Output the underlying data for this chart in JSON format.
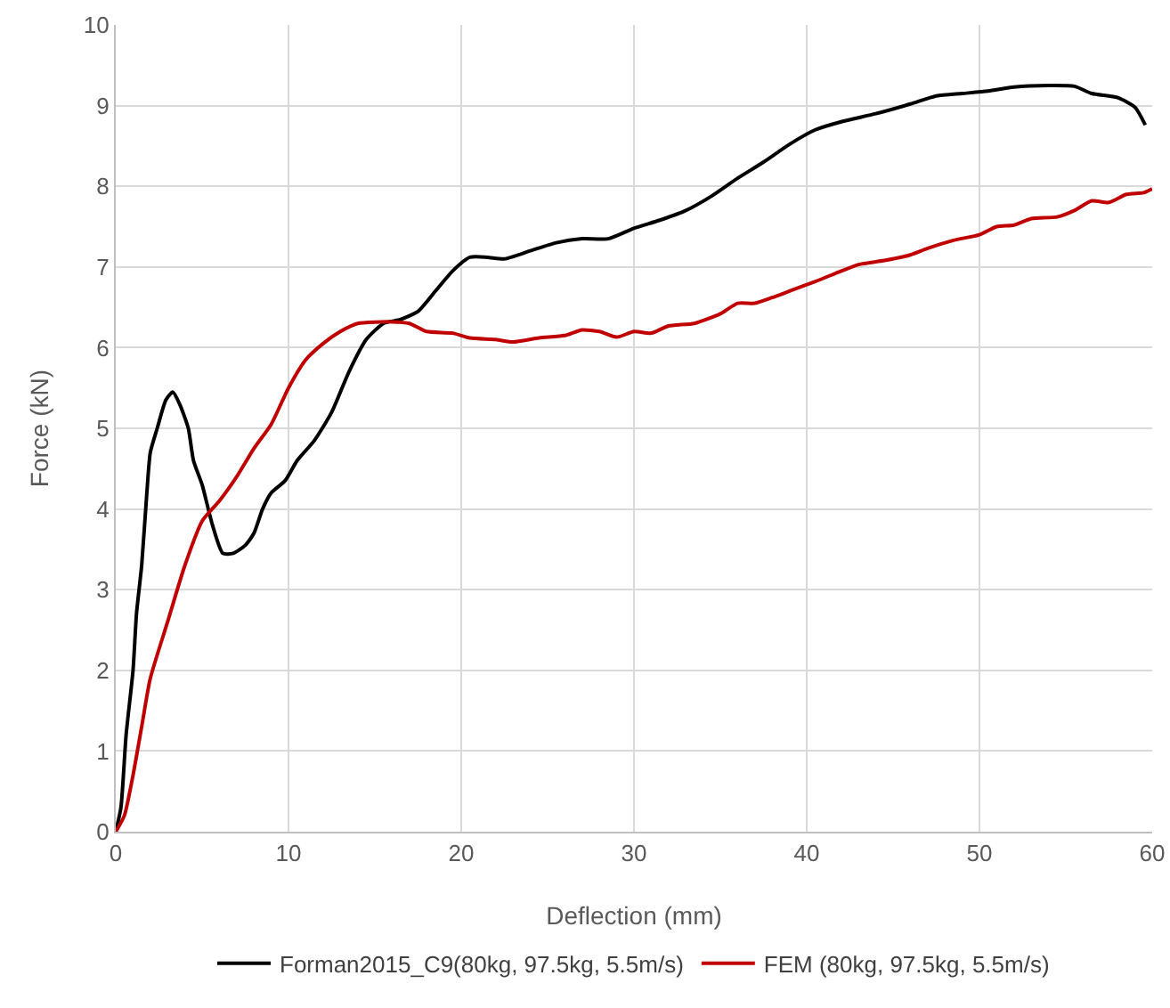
{
  "chart_data": {
    "type": "line",
    "xlabel": "Deflection (mm)",
    "ylabel": "Force (kN)",
    "xlim": [
      0,
      60
    ],
    "xticks": [
      0,
      10,
      20,
      30,
      40,
      50,
      60
    ],
    "ylim": [
      0,
      10
    ],
    "yticks": [
      0,
      1,
      2,
      3,
      4,
      5,
      6,
      7,
      8,
      9,
      10
    ],
    "grid": true,
    "legend": "bottom",
    "marker": "none",
    "line_style": "solid",
    "series": [
      {
        "name": "Forman2015_C9(80kg, 97.5kg, 5.5m/s)",
        "color": "#000000",
        "x": [
          0,
          0.3,
          0.6,
          1.0,
          1.2,
          1.5,
          1.8,
          2.0,
          2.4,
          2.9,
          3.3,
          3.7,
          4.2,
          4.5,
          5.0,
          5.6,
          6.2,
          6.8,
          7.5,
          8.0,
          8.5,
          9.0,
          9.8,
          10.5,
          11.5,
          12.5,
          13.5,
          14.5,
          15.5,
          16.5,
          17.5,
          18.5,
          19.5,
          20.5,
          21.5,
          22.5,
          24,
          25.5,
          27,
          28.5,
          30,
          31.5,
          33,
          34.5,
          36,
          37.5,
          39,
          40.5,
          42,
          44,
          46,
          47.5,
          49,
          50.5,
          52,
          54,
          55.5,
          56.5,
          58,
          59,
          59.6
        ],
        "values": [
          0,
          0.3,
          1.2,
          2.0,
          2.7,
          3.3,
          4.2,
          4.7,
          5.0,
          5.35,
          5.45,
          5.3,
          5.0,
          4.6,
          4.3,
          3.8,
          3.45,
          3.45,
          3.55,
          3.7,
          4.0,
          4.2,
          4.35,
          4.6,
          4.85,
          5.2,
          5.7,
          6.1,
          6.3,
          6.35,
          6.45,
          6.7,
          6.95,
          7.12,
          7.12,
          7.1,
          7.2,
          7.3,
          7.35,
          7.35,
          7.48,
          7.58,
          7.7,
          7.88,
          8.1,
          8.3,
          8.52,
          8.7,
          8.8,
          8.9,
          9.02,
          9.12,
          9.15,
          9.18,
          9.23,
          9.25,
          9.24,
          9.15,
          9.1,
          8.98,
          8.76
        ]
      },
      {
        "name": "FEM (80kg, 97.5kg, 5.5m/s)",
        "color": "#c00000",
        "x": [
          0,
          0.5,
          1,
          1.5,
          2,
          3,
          4,
          5,
          6,
          7,
          8,
          9,
          10,
          11,
          12,
          13,
          14,
          16,
          17,
          18,
          19.5,
          20.5,
          22,
          23,
          24.5,
          26,
          27,
          28,
          29,
          30,
          31,
          32,
          33.5,
          35,
          36,
          37,
          38,
          39,
          40.5,
          42,
          43,
          44.5,
          46,
          47,
          48.5,
          50,
          51,
          52,
          53,
          54.5,
          55.5,
          56.5,
          57.5,
          58.5,
          59.5,
          60
        ],
        "values": [
          0,
          0.2,
          0.7,
          1.3,
          1.9,
          2.6,
          3.3,
          3.85,
          4.1,
          4.4,
          4.75,
          5.05,
          5.5,
          5.85,
          6.05,
          6.2,
          6.3,
          6.32,
          6.3,
          6.2,
          6.18,
          6.12,
          6.1,
          6.07,
          6.12,
          6.15,
          6.22,
          6.2,
          6.13,
          6.2,
          6.18,
          6.27,
          6.3,
          6.42,
          6.55,
          6.55,
          6.62,
          6.7,
          6.82,
          6.95,
          7.03,
          7.08,
          7.15,
          7.23,
          7.33,
          7.4,
          7.5,
          7.52,
          7.6,
          7.62,
          7.7,
          7.82,
          7.8,
          7.9,
          7.92,
          7.97
        ]
      }
    ]
  }
}
